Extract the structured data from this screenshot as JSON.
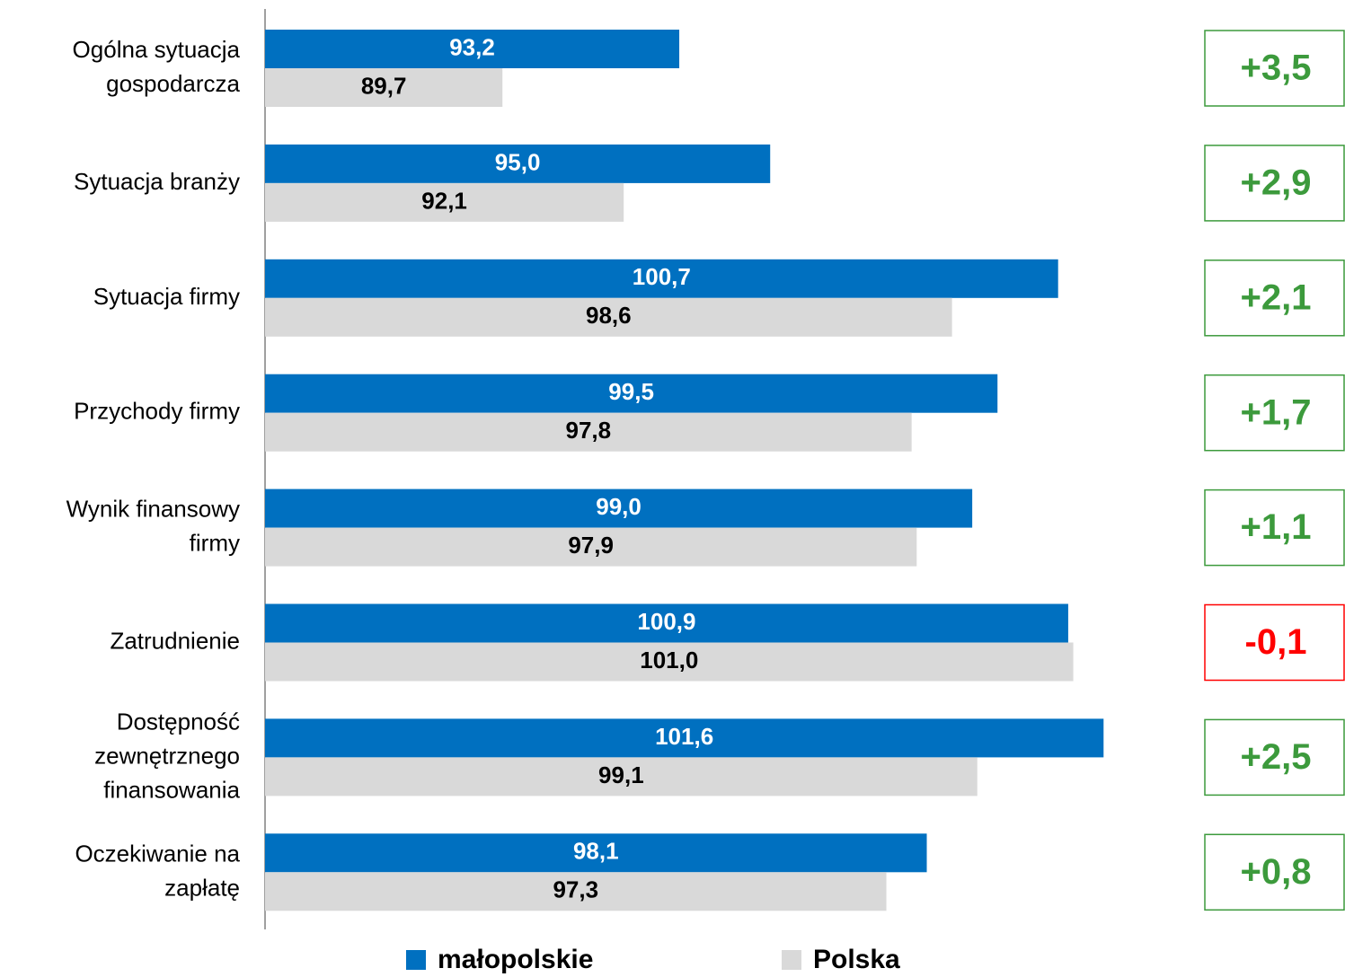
{
  "chart_data": {
    "type": "bar",
    "orientation": "horizontal",
    "categories": [
      "Ogólna sytuacja\ngospodarcza",
      "Sytuacja branży",
      "Sytuacja firmy",
      "Przychody firmy",
      "Wynik finansowy\nfirmy",
      "Zatrudnienie",
      "Dostępność\nzewnętrznego\nfinansowania",
      "Oczekiwanie na\nzapłatę"
    ],
    "series": [
      {
        "name": "małopolskie",
        "color": "#0070c0",
        "label_color": "#ffffff",
        "values": [
          93.2,
          95.0,
          100.7,
          99.5,
          99.0,
          100.9,
          101.6,
          98.1
        ],
        "value_labels": [
          "93,2",
          "95,0",
          "100,7",
          "99,5",
          "99,0",
          "100,9",
          "101,6",
          "98,1"
        ]
      },
      {
        "name": "Polska",
        "color": "#d9d9d9",
        "label_color": "#000000",
        "values": [
          89.7,
          92.1,
          98.6,
          97.8,
          97.9,
          101.0,
          99.1,
          97.3
        ],
        "value_labels": [
          "89,7",
          "92,1",
          "98,6",
          "97,8",
          "97,9",
          "101,0",
          "99,1",
          "97,3"
        ]
      }
    ],
    "differences": {
      "values": [
        3.5,
        2.9,
        2.1,
        1.7,
        1.1,
        -0.1,
        2.5,
        0.8
      ],
      "value_labels": [
        "+3,5",
        "+2,9",
        "+2,1",
        "+1,7",
        "+1,1",
        "-0,1",
        "+2,5",
        "+0,8"
      ],
      "positive_color": "#3c9a3c",
      "negative_color": "#ff0000"
    },
    "xlim": [
      85,
      103
    ],
    "legend": "bottom"
  }
}
